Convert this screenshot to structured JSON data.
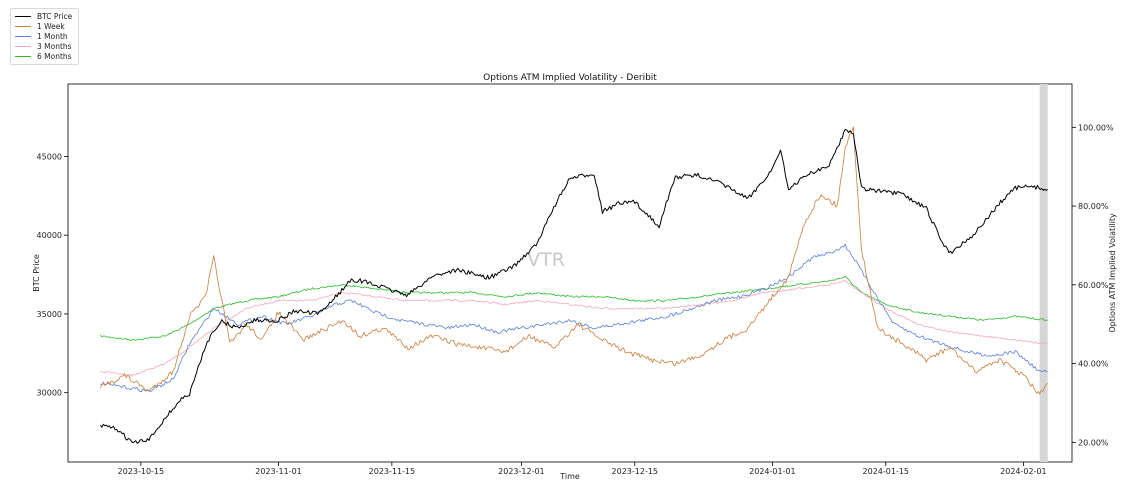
{
  "chart_data": {
    "type": "line",
    "title": "Options ATM Implied Volatility - Deribit",
    "xlabel": "Time",
    "ylabel_left": "BTC Price",
    "ylabel_right": "Options ATM Implied Volatility",
    "watermark": "VTR",
    "x_range": [
      "2023-10-06",
      "2024-02-07"
    ],
    "ylim_left": [
      25600,
      49600
    ],
    "ylim_right": [
      15.0,
      111.0
    ],
    "x_ticks": [
      "2023-10-15",
      "2023-11-01",
      "2023-11-15",
      "2023-12-01",
      "2023-12-15",
      "2024-01-01",
      "2024-01-15",
      "2024-02-01"
    ],
    "y_ticks_left": [
      30000,
      35000,
      40000,
      45000
    ],
    "y_ticks_right": [
      "20.00%",
      "40.00%",
      "60.00%",
      "80.00%",
      "100.00%"
    ],
    "y_ticks_right_values": [
      20,
      40,
      60,
      80,
      100
    ],
    "shaded_region": [
      "2024-02-03",
      "2024-02-04"
    ],
    "legend_placement": "top-left",
    "legend": [
      "BTC Price",
      "1 Week",
      "1 Month",
      "3 Months",
      "6 Months"
    ],
    "series": [
      {
        "name": "BTC Price",
        "axis": "left",
        "color": "#000000",
        "x": [
          "2023-10-10",
          "2023-10-12",
          "2023-10-14",
          "2023-10-16",
          "2023-10-18",
          "2023-10-20",
          "2023-10-21",
          "2023-10-23",
          "2023-10-24",
          "2023-10-25",
          "2023-10-27",
          "2023-10-29",
          "2023-11-01",
          "2023-11-03",
          "2023-11-06",
          "2023-11-09",
          "2023-11-10",
          "2023-11-12",
          "2023-11-15",
          "2023-11-17",
          "2023-11-20",
          "2023-11-23",
          "2023-11-27",
          "2023-11-30",
          "2023-12-03",
          "2023-12-05",
          "2023-12-07",
          "2023-12-10",
          "2023-12-11",
          "2023-12-13",
          "2023-12-15",
          "2023-12-18",
          "2023-12-20",
          "2023-12-23",
          "2023-12-26",
          "2023-12-29",
          "2024-01-01",
          "2024-01-02",
          "2024-01-03",
          "2024-01-05",
          "2024-01-08",
          "2024-01-10",
          "2024-01-11",
          "2024-01-12",
          "2024-01-14",
          "2024-01-17",
          "2024-01-20",
          "2024-01-22",
          "2024-01-23",
          "2024-01-26",
          "2024-01-29",
          "2024-01-31",
          "2024-02-02",
          "2024-02-04"
        ],
        "values": [
          27900,
          27700,
          26800,
          27000,
          28400,
          29600,
          29900,
          33000,
          34000,
          34500,
          34100,
          34600,
          34600,
          35200,
          35000,
          36600,
          37200,
          37000,
          36500,
          36200,
          37400,
          37800,
          37300,
          38000,
          39500,
          41800,
          43600,
          43900,
          41500,
          42000,
          42100,
          40600,
          43700,
          43800,
          43200,
          42300,
          44200,
          45500,
          42800,
          43800,
          44400,
          46700,
          46500,
          43000,
          42800,
          42600,
          41700,
          39500,
          38900,
          40100,
          42000,
          43000,
          43100,
          42900
        ]
      },
      {
        "name": "1 Week",
        "axis": "right",
        "color": "#c87e3c",
        "x": [
          "2023-10-10",
          "2023-10-13",
          "2023-10-16",
          "2023-10-19",
          "2023-10-21",
          "2023-10-23",
          "2023-10-24",
          "2023-10-26",
          "2023-10-28",
          "2023-10-30",
          "2023-11-01",
          "2023-11-04",
          "2023-11-07",
          "2023-11-09",
          "2023-11-11",
          "2023-11-14",
          "2023-11-17",
          "2023-11-20",
          "2023-11-23",
          "2023-11-26",
          "2023-11-29",
          "2023-12-02",
          "2023-12-05",
          "2023-12-08",
          "2023-12-11",
          "2023-12-14",
          "2023-12-17",
          "2023-12-20",
          "2023-12-23",
          "2023-12-26",
          "2023-12-29",
          "2024-01-01",
          "2024-01-03",
          "2024-01-05",
          "2024-01-07",
          "2024-01-09",
          "2024-01-10",
          "2024-01-11",
          "2024-01-12",
          "2024-01-14",
          "2024-01-17",
          "2024-01-20",
          "2024-01-23",
          "2024-01-26",
          "2024-01-29",
          "2024-02-01",
          "2024-02-03",
          "2024-02-04"
        ],
        "values": [
          34,
          37,
          33,
          38,
          52,
          57,
          67,
          45,
          50,
          46,
          53,
          46,
          49,
          51,
          47,
          49,
          44,
          47,
          45,
          44,
          43,
          47,
          44,
          50,
          46,
          43,
          41,
          40,
          42,
          46,
          49,
          57,
          62,
          76,
          83,
          80,
          95,
          100,
          69,
          49,
          45,
          41,
          44,
          38,
          41,
          37,
          32,
          35
        ]
      },
      {
        "name": "1 Month",
        "axis": "right",
        "color": "#5b7fd4",
        "x": [
          "2023-10-10",
          "2023-10-13",
          "2023-10-16",
          "2023-10-19",
          "2023-10-21",
          "2023-10-24",
          "2023-10-27",
          "2023-10-30",
          "2023-11-02",
          "2023-11-05",
          "2023-11-08",
          "2023-11-10",
          "2023-11-13",
          "2023-11-16",
          "2023-11-19",
          "2023-11-22",
          "2023-11-25",
          "2023-11-28",
          "2023-12-01",
          "2023-12-04",
          "2023-12-07",
          "2023-12-10",
          "2023-12-13",
          "2023-12-16",
          "2023-12-19",
          "2023-12-22",
          "2023-12-25",
          "2023-12-28",
          "2023-12-31",
          "2024-01-03",
          "2024-01-06",
          "2024-01-08",
          "2024-01-10",
          "2024-01-11",
          "2024-01-13",
          "2024-01-16",
          "2024-01-19",
          "2024-01-22",
          "2024-01-25",
          "2024-01-28",
          "2024-01-31",
          "2024-02-03",
          "2024-02-04"
        ],
        "values": [
          35,
          34,
          33,
          36,
          45,
          54,
          50,
          52,
          50,
          52,
          55,
          56,
          53,
          51,
          50,
          49,
          50,
          48,
          49,
          50,
          51,
          49,
          50,
          51,
          52,
          54,
          56,
          57,
          59,
          62,
          67,
          68,
          70,
          67,
          60,
          50,
          47,
          45,
          43,
          42,
          43,
          38,
          38
        ]
      },
      {
        "name": "3 Months",
        "axis": "right",
        "color": "#f0a8b8",
        "x": [
          "2023-10-10",
          "2023-10-14",
          "2023-10-18",
          "2023-10-21",
          "2023-10-24",
          "2023-10-28",
          "2023-11-01",
          "2023-11-05",
          "2023-11-09",
          "2023-11-13",
          "2023-11-17",
          "2023-11-21",
          "2023-11-25",
          "2023-11-29",
          "2023-12-03",
          "2023-12-07",
          "2023-12-11",
          "2023-12-15",
          "2023-12-19",
          "2023-12-23",
          "2023-12-27",
          "2023-12-31",
          "2024-01-04",
          "2024-01-08",
          "2024-01-10",
          "2024-01-12",
          "2024-01-15",
          "2024-01-19",
          "2024-01-23",
          "2024-01-27",
          "2024-01-31",
          "2024-02-04"
        ],
        "values": [
          38,
          37,
          40,
          44,
          49,
          54,
          56,
          56,
          58,
          57,
          56,
          56,
          56,
          55,
          56,
          55,
          54,
          54,
          54,
          55,
          56,
          58,
          59,
          60,
          61,
          58,
          54,
          50,
          48,
          47,
          46,
          45
        ]
      },
      {
        "name": "6 Months",
        "axis": "right",
        "color": "#2db82d",
        "x": [
          "2023-10-10",
          "2023-10-14",
          "2023-10-18",
          "2023-10-21",
          "2023-10-24",
          "2023-10-28",
          "2023-11-01",
          "2023-11-05",
          "2023-11-09",
          "2023-11-13",
          "2023-11-17",
          "2023-11-21",
          "2023-11-25",
          "2023-11-29",
          "2023-12-03",
          "2023-12-07",
          "2023-12-11",
          "2023-12-15",
          "2023-12-19",
          "2023-12-23",
          "2023-12-27",
          "2023-12-31",
          "2024-01-04",
          "2024-01-08",
          "2024-01-10",
          "2024-01-12",
          "2024-01-15",
          "2024-01-19",
          "2024-01-23",
          "2024-01-27",
          "2024-01-31",
          "2024-02-04"
        ],
        "values": [
          47,
          46,
          47,
          50,
          54,
          56,
          57,
          59,
          60,
          59,
          58,
          58,
          58,
          57,
          58,
          57,
          57,
          56,
          56,
          57,
          58,
          59,
          60,
          61,
          62,
          58,
          55,
          53,
          52,
          51,
          52,
          51
        ]
      }
    ]
  }
}
